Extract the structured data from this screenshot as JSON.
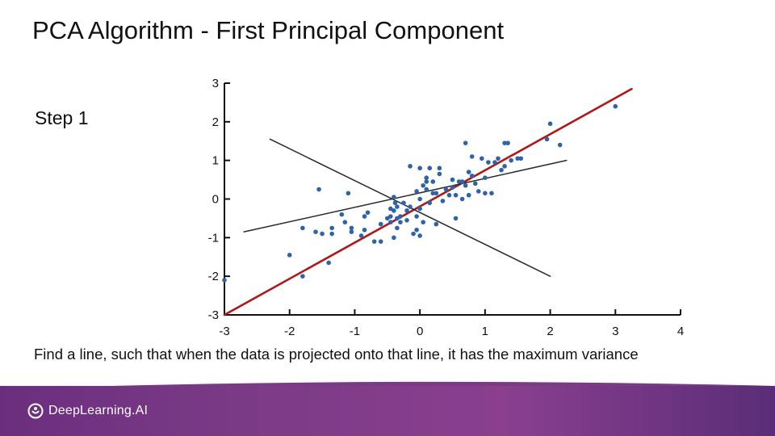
{
  "slide": {
    "title": "PCA Algorithm - First Principal Component",
    "step_label": "Step 1",
    "caption": "Find a line, such that when the data is projected onto that line, it has the maximum variance",
    "brand": "DeepLearning.AI",
    "footer_color": "#7a3a86"
  },
  "chart_data": {
    "type": "scatter",
    "xlim": [
      -3,
      4
    ],
    "ylim": [
      -3,
      3
    ],
    "x_ticks": [
      "-3",
      "-2",
      "-1",
      "0",
      "1",
      "2",
      "3",
      "4"
    ],
    "y_ticks": [
      "3",
      "2",
      "1",
      "0",
      "-1",
      "-2",
      "-3"
    ],
    "point_color": "#2e63a8",
    "points": [
      [
        -3.0,
        -2.1
      ],
      [
        -2.0,
        -1.45
      ],
      [
        -1.8,
        -2.0
      ],
      [
        -1.8,
        -0.75
      ],
      [
        -1.6,
        -0.85
      ],
      [
        -1.55,
        0.25
      ],
      [
        -1.5,
        -0.9
      ],
      [
        -1.4,
        -1.65
      ],
      [
        -1.35,
        -0.9
      ],
      [
        -1.35,
        -0.75
      ],
      [
        -1.2,
        -0.4
      ],
      [
        -1.15,
        -0.6
      ],
      [
        -1.1,
        0.15
      ],
      [
        -1.05,
        -0.75
      ],
      [
        -1.05,
        -0.85
      ],
      [
        -0.9,
        -0.95
      ],
      [
        -0.85,
        -0.45
      ],
      [
        -0.85,
        -0.8
      ],
      [
        -0.8,
        -0.35
      ],
      [
        -0.7,
        -1.1
      ],
      [
        -0.6,
        -0.65
      ],
      [
        -0.6,
        -1.1
      ],
      [
        -0.5,
        -0.5
      ],
      [
        -0.45,
        -0.45
      ],
      [
        -0.45,
        -0.25
      ],
      [
        -0.45,
        -0.6
      ],
      [
        -0.4,
        -1.0
      ],
      [
        -0.4,
        -0.3
      ],
      [
        -0.4,
        0.05
      ],
      [
        -0.38,
        -0.1
      ],
      [
        -0.35,
        -0.5
      ],
      [
        -0.35,
        -0.2
      ],
      [
        -0.35,
        -0.75
      ],
      [
        -0.3,
        -0.6
      ],
      [
        -0.3,
        -0.45
      ],
      [
        -0.25,
        -0.1
      ],
      [
        -0.2,
        -0.55
      ],
      [
        -0.2,
        -0.3
      ],
      [
        -0.15,
        -0.2
      ],
      [
        -0.15,
        0.85
      ],
      [
        -0.1,
        -0.9
      ],
      [
        -0.05,
        0.2
      ],
      [
        -0.05,
        -0.45
      ],
      [
        -0.05,
        -0.8
      ],
      [
        0.0,
        -0.25
      ],
      [
        0.0,
        -0.95
      ],
      [
        0.0,
        0.0
      ],
      [
        0.0,
        0.8
      ],
      [
        0.05,
        0.35
      ],
      [
        0.05,
        -0.6
      ],
      [
        0.1,
        0.45
      ],
      [
        0.1,
        0.25
      ],
      [
        0.1,
        0.55
      ],
      [
        0.15,
        0.8
      ],
      [
        0.15,
        -0.1
      ],
      [
        0.2,
        0.45
      ],
      [
        0.2,
        0.15
      ],
      [
        0.25,
        -0.65
      ],
      [
        0.25,
        0.15
      ],
      [
        0.3,
        0.65
      ],
      [
        0.3,
        0.8
      ],
      [
        0.35,
        -0.05
      ],
      [
        0.4,
        0.25
      ],
      [
        0.45,
        0.1
      ],
      [
        0.5,
        0.3
      ],
      [
        0.5,
        0.5
      ],
      [
        0.55,
        0.1
      ],
      [
        0.55,
        -0.5
      ],
      [
        0.6,
        0.45
      ],
      [
        0.65,
        0.45
      ],
      [
        0.65,
        0.0
      ],
      [
        0.7,
        1.45
      ],
      [
        0.7,
        0.35
      ],
      [
        0.75,
        0.7
      ],
      [
        0.75,
        0.1
      ],
      [
        0.8,
        0.6
      ],
      [
        0.8,
        1.1
      ],
      [
        0.85,
        0.4
      ],
      [
        0.9,
        0.2
      ],
      [
        0.95,
        1.05
      ],
      [
        1.0,
        0.15
      ],
      [
        1.0,
        0.55
      ],
      [
        1.05,
        0.95
      ],
      [
        1.1,
        0.15
      ],
      [
        1.15,
        0.95
      ],
      [
        1.2,
        1.05
      ],
      [
        1.25,
        0.75
      ],
      [
        1.3,
        0.85
      ],
      [
        1.3,
        1.45
      ],
      [
        1.35,
        1.45
      ],
      [
        1.4,
        1.0
      ],
      [
        1.5,
        1.05
      ],
      [
        1.55,
        1.05
      ],
      [
        1.95,
        1.55
      ],
      [
        2.0,
        1.95
      ],
      [
        2.15,
        1.4
      ],
      [
        3.0,
        2.4
      ]
    ],
    "lines": [
      {
        "color": "#b01818",
        "width": 2.6,
        "from": [
          -3.0,
          -3.0
        ],
        "to": [
          3.25,
          2.85
        ]
      },
      {
        "color": "#2b2b2b",
        "width": 1.5,
        "from": [
          -2.7,
          -0.85
        ],
        "to": [
          2.25,
          1.0
        ]
      },
      {
        "color": "#2b2b2b",
        "width": 1.5,
        "from": [
          -2.3,
          1.55
        ],
        "to": [
          2.0,
          -2.0
        ]
      }
    ]
  }
}
